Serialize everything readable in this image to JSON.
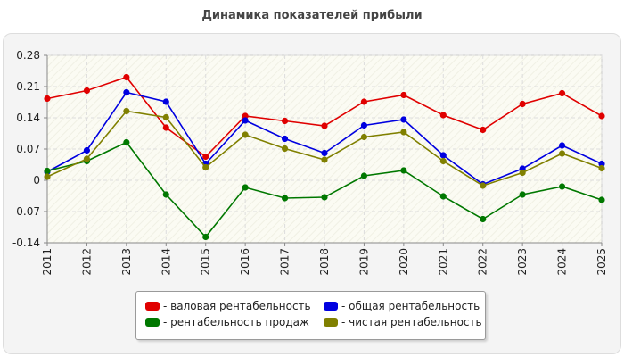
{
  "chart_data": {
    "type": "line",
    "title": "Динамика показателей прибыли",
    "xlabel": "",
    "ylabel": "",
    "x": [
      "2011",
      "2012",
      "2013",
      "2014",
      "2015",
      "2016",
      "2017",
      "2018",
      "2019",
      "2020",
      "2021",
      "2022",
      "2023",
      "2024",
      "2025"
    ],
    "ylim": [
      -0.14,
      0.28
    ],
    "yticks": [
      "0.28",
      "0.21",
      "0.14",
      "0.07",
      "0",
      "-0.07",
      "-0.14"
    ],
    "ytick_values": [
      0.28,
      0.21,
      0.14,
      0.07,
      0,
      -0.07,
      -0.14
    ],
    "grid": true,
    "legend_position": "bottom-center",
    "series": [
      {
        "name": "- валовая рентабельность",
        "color": "#e00000",
        "values": [
          0.183,
          0.201,
          0.231,
          0.118,
          0.053,
          0.144,
          0.133,
          0.122,
          0.176,
          0.191,
          0.146,
          0.113,
          0.171,
          0.195,
          0.144
        ]
      },
      {
        "name": "- общая рентабельность",
        "color": "#0000e0",
        "values": [
          0.019,
          0.067,
          0.197,
          0.176,
          0.037,
          0.134,
          0.093,
          0.061,
          0.123,
          0.136,
          0.056,
          -0.009,
          0.026,
          0.078,
          0.037
        ]
      },
      {
        "name": "- рентабельность продаж",
        "color": "#007800",
        "values": [
          0.021,
          0.043,
          0.085,
          -0.032,
          -0.127,
          -0.016,
          -0.04,
          -0.038,
          0.01,
          0.022,
          -0.036,
          -0.087,
          -0.032,
          -0.014,
          -0.044
        ]
      },
      {
        "name": "- чистая рентабельность",
        "color": "#808000",
        "values": [
          0.008,
          0.048,
          0.155,
          0.141,
          0.029,
          0.102,
          0.071,
          0.046,
          0.097,
          0.108,
          0.043,
          -0.012,
          0.017,
          0.06,
          0.027
        ]
      }
    ]
  }
}
